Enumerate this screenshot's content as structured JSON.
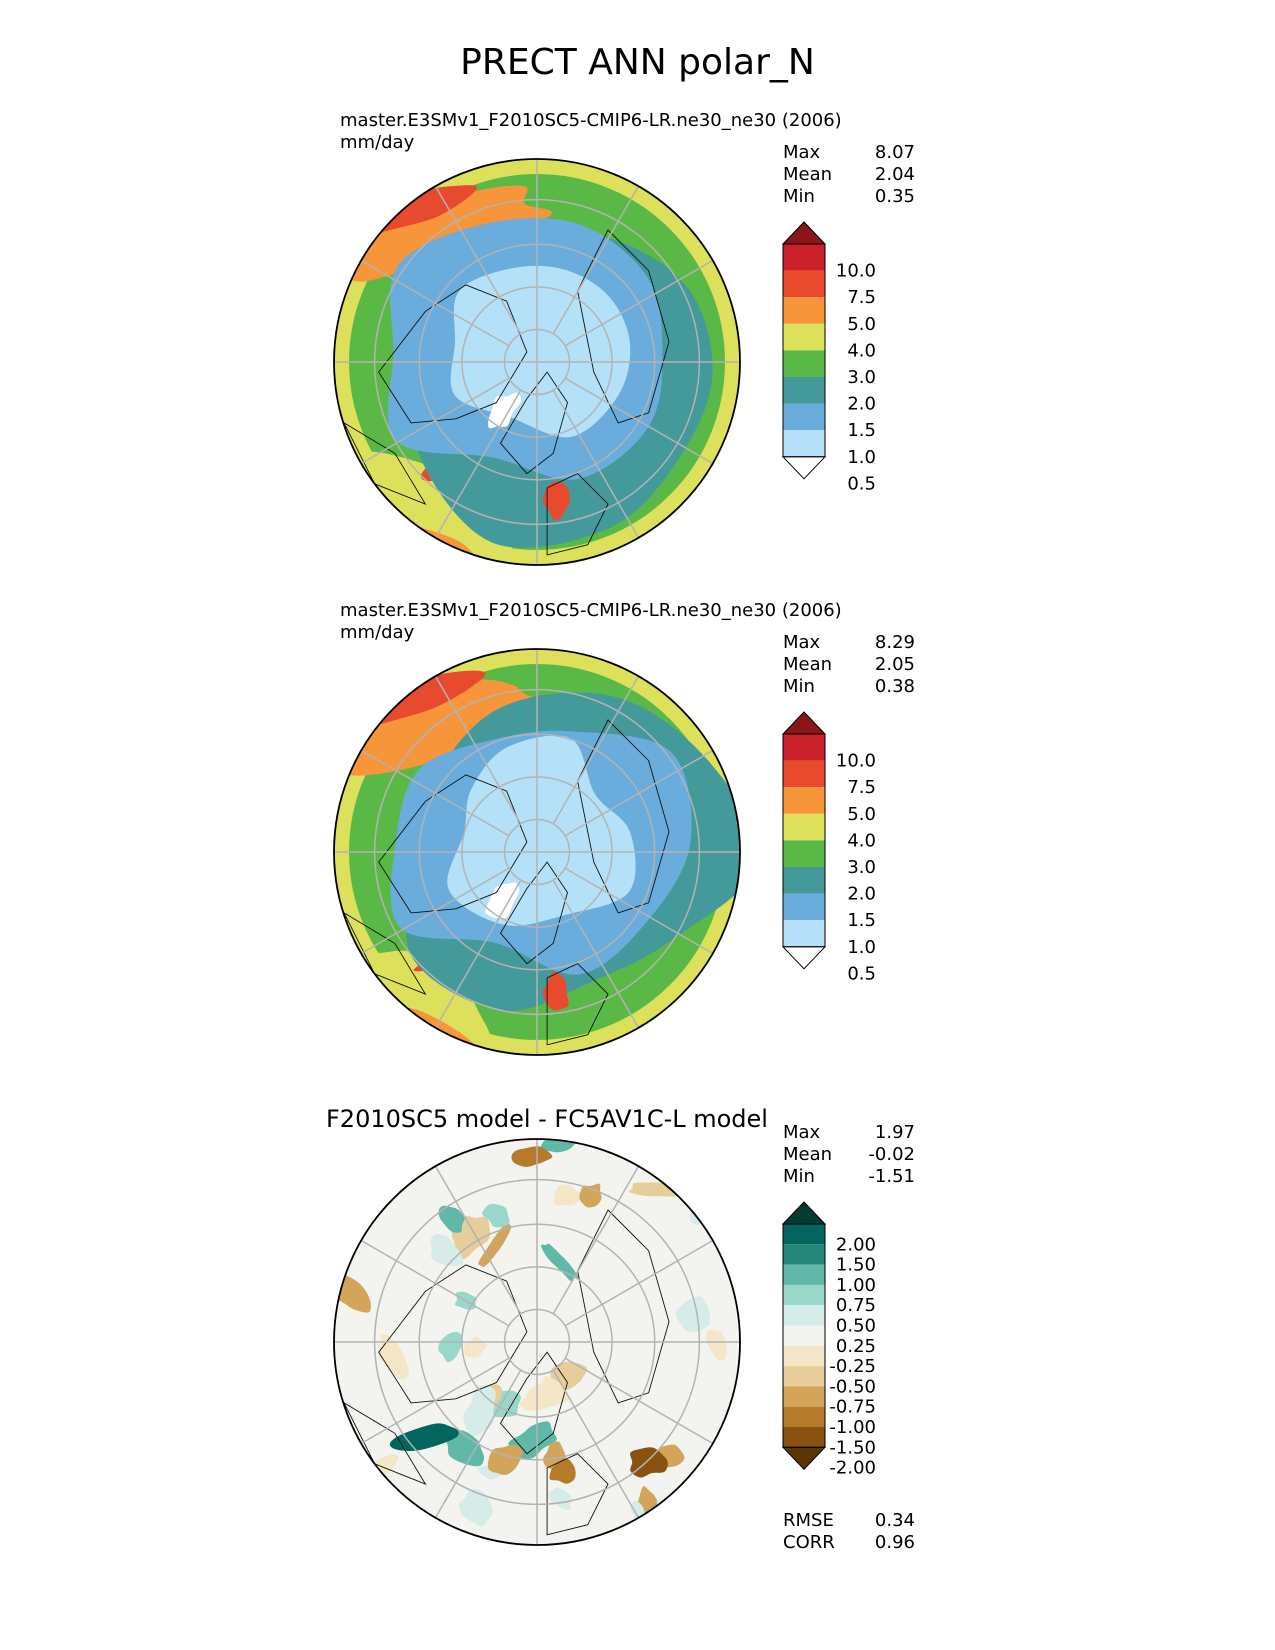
{
  "main_title": "PRECT ANN polar_N",
  "colors": {
    "precip": [
      "#ffffff",
      "#b4e1f8",
      "#6aaddd",
      "#44999a",
      "#5ab946",
      "#dde05a",
      "#f7953a",
      "#e84a2e",
      "#c9202a",
      "#8b1619"
    ],
    "diff": [
      "#5a3607",
      "#8a5210",
      "#b57b2a",
      "#d2a55b",
      "#e6cd99",
      "#f5e6c7",
      "#f3f3f0",
      "#d5ece8",
      "#9ad7cb",
      "#5fb8a8",
      "#268677",
      "#03665e",
      "#013c30"
    ],
    "land_outline": "#111111",
    "grid": "#b3b3b3"
  },
  "panels": [
    {
      "title_line1": "master.E3SMv1_F2010SC5-CMIP6-LR.ne30_ne30 (2006)",
      "title_line2": "mm/day",
      "stats": {
        "max_label": "Max",
        "max": "8.07",
        "mean_label": "Mean",
        "mean": "2.04",
        "min_label": "Min",
        "min": "0.35"
      },
      "colorbar_levels": [
        "10.0",
        "7.5",
        "5.0",
        "4.0",
        "3.0",
        "2.0",
        "1.5",
        "1.0",
        "0.5"
      ]
    },
    {
      "title_line1": "master.E3SMv1_F2010SC5-CMIP6-LR.ne30_ne30 (2006)",
      "title_line2": "mm/day",
      "stats": {
        "max_label": "Max",
        "max": "8.29",
        "mean_label": "Mean",
        "mean": "2.05",
        "min_label": "Min",
        "min": "0.38"
      },
      "colorbar_levels": [
        "10.0",
        "7.5",
        "5.0",
        "4.0",
        "3.0",
        "2.0",
        "1.5",
        "1.0",
        "0.5"
      ]
    },
    {
      "title": "F2010SC5 model - FC5AV1C-L model",
      "stats": {
        "max_label": "Max",
        "max": "1.97",
        "mean_label": "Mean",
        "mean": "-0.02",
        "min_label": "Min",
        "min": "-1.51"
      },
      "colorbar_levels": [
        "2.00",
        "1.50",
        "1.00",
        "0.75",
        "0.50",
        "0.25",
        "-0.25",
        "-0.50",
        "-0.75",
        "-1.00",
        "-1.50",
        "-2.00"
      ],
      "metrics": {
        "rmse_label": "RMSE",
        "rmse": "0.34",
        "corr_label": "CORR",
        "corr": "0.96"
      }
    }
  ],
  "chart_data": [
    {
      "type": "heatmap",
      "projection": "north-polar-stereographic",
      "title": "master.E3SMv1_F2010SC5-CMIP6-LR.ne30_ne30 (2006)",
      "units": "mm/day",
      "levels": [
        0.5,
        1.0,
        1.5,
        2.0,
        3.0,
        4.0,
        5.0,
        7.5,
        10.0
      ],
      "stats": {
        "max": 8.07,
        "mean": 2.04,
        "min": 0.35
      }
    },
    {
      "type": "heatmap",
      "projection": "north-polar-stereographic",
      "title": "master.E3SMv1_F2010SC5-CMIP6-LR.ne30_ne30 (2006)",
      "units": "mm/day",
      "levels": [
        0.5,
        1.0,
        1.5,
        2.0,
        3.0,
        4.0,
        5.0,
        7.5,
        10.0
      ],
      "stats": {
        "max": 8.29,
        "mean": 2.05,
        "min": 0.38
      }
    },
    {
      "type": "heatmap",
      "projection": "north-polar-stereographic",
      "title": "F2010SC5 model - FC5AV1C-L model",
      "levels": [
        -2.0,
        -1.5,
        -1.0,
        -0.75,
        -0.5,
        -0.25,
        0.25,
        0.5,
        0.75,
        1.0,
        1.5,
        2.0
      ],
      "stats": {
        "max": 1.97,
        "mean": -0.02,
        "min": -1.51
      },
      "metrics": {
        "rmse": 0.34,
        "corr": 0.96
      }
    }
  ]
}
